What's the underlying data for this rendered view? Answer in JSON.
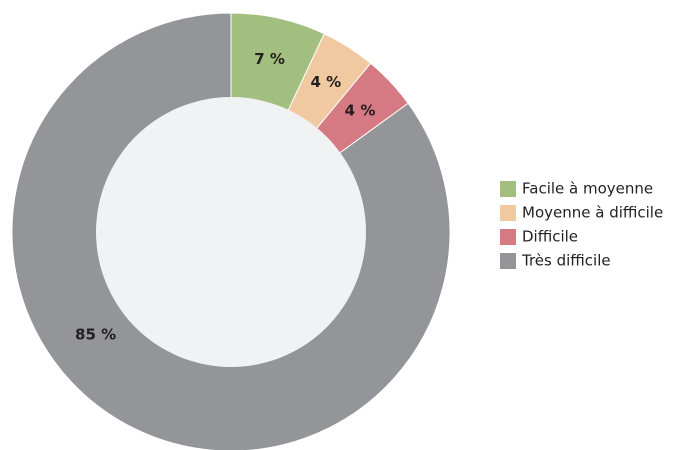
{
  "chart_data": {
    "type": "donut",
    "categories": [
      "Facile à moyenne",
      "Moyenne à difficile",
      "Difficile",
      "Très difficile"
    ],
    "values": [
      7,
      4,
      4,
      85
    ],
    "value_labels": [
      "7 %",
      "4 %",
      "4 %",
      "85 %"
    ],
    "colors": [
      "#a3bf7f",
      "#f0c9a0",
      "#d57a82",
      "#939598"
    ],
    "legend": "right"
  }
}
